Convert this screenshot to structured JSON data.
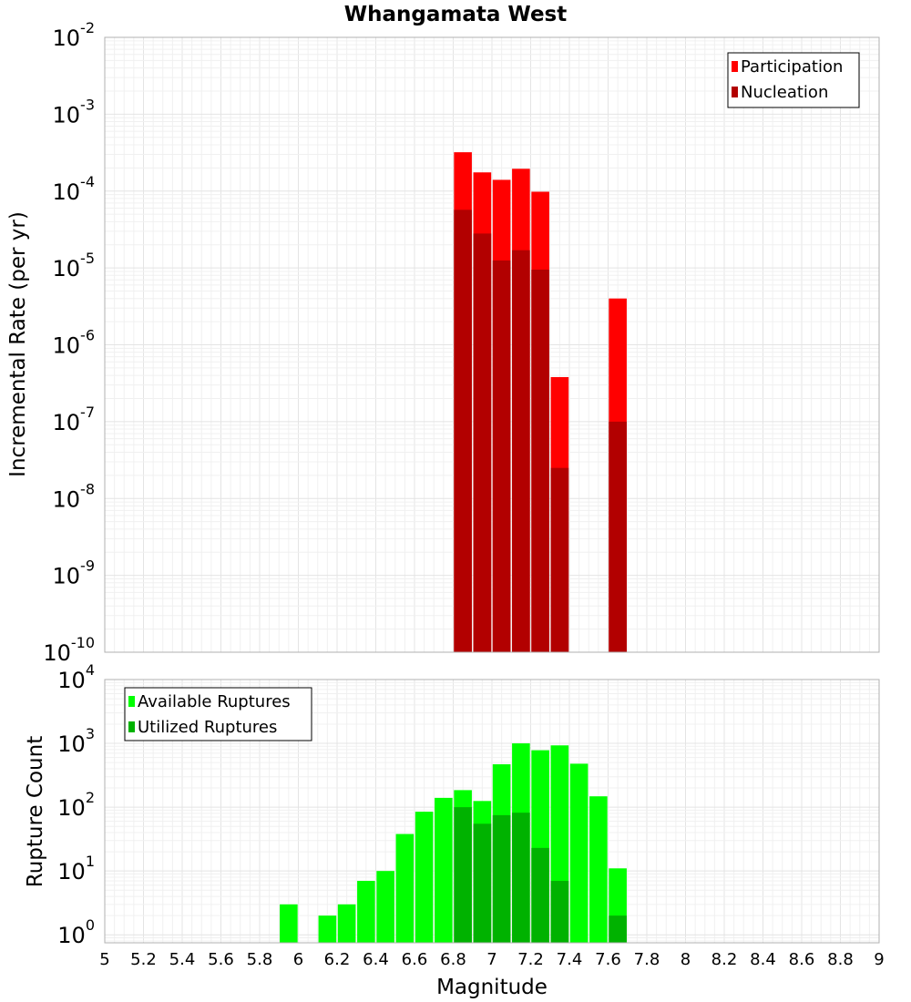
{
  "chart_data": [
    {
      "type": "bar",
      "title": "Whangamata West",
      "xlabel": "",
      "ylabel": "Incremental Rate (per yr)",
      "yscale": "log",
      "ylim": [
        1e-10,
        0.01
      ],
      "xlim": [
        5,
        9
      ],
      "grid": true,
      "legend_position": "top-right",
      "y_ticks": [
        {
          "base": "10",
          "exp": "-10"
        },
        {
          "base": "10",
          "exp": "-9"
        },
        {
          "base": "10",
          "exp": "-8"
        },
        {
          "base": "10",
          "exp": "-7"
        },
        {
          "base": "10",
          "exp": "-6"
        },
        {
          "base": "10",
          "exp": "-5"
        },
        {
          "base": "10",
          "exp": "-4"
        },
        {
          "base": "10",
          "exp": "-3"
        },
        {
          "base": "10",
          "exp": "-2"
        }
      ],
      "series": [
        {
          "name": "Participation",
          "color": "#ff0000",
          "x": [
            6.85,
            6.95,
            7.05,
            7.15,
            7.25,
            7.35,
            7.65
          ],
          "values": [
            0.00032,
            0.000175,
            0.00014,
            0.000195,
            9.8e-05,
            3.8e-07,
            4e-06
          ]
        },
        {
          "name": "Nucleation",
          "color": "#b20000",
          "x": [
            6.85,
            6.95,
            7.05,
            7.15,
            7.25,
            7.35,
            7.65
          ],
          "values": [
            5.7e-05,
            2.8e-05,
            1.25e-05,
            1.7e-05,
            9.5e-06,
            2.5e-08,
            1e-07
          ]
        }
      ]
    },
    {
      "type": "bar",
      "title": "",
      "xlabel": "Magnitude",
      "ylabel": "Rupture Count",
      "yscale": "log",
      "ylim": [
        0.75,
        10000
      ],
      "xlim": [
        5,
        9
      ],
      "grid": true,
      "legend_position": "top-left",
      "x_ticks": [
        "5",
        "5.2",
        "5.4",
        "5.6",
        "5.8",
        "6",
        "6.2",
        "6.4",
        "6.6",
        "6.8",
        "7",
        "7.2",
        "7.4",
        "7.6",
        "7.8",
        "8",
        "8.2",
        "8.4",
        "8.6",
        "8.8",
        "9"
      ],
      "y_ticks": [
        {
          "base": "10",
          "exp": "0"
        },
        {
          "base": "10",
          "exp": "1"
        },
        {
          "base": "10",
          "exp": "2"
        },
        {
          "base": "10",
          "exp": "3"
        },
        {
          "base": "10",
          "exp": "4"
        }
      ],
      "series": [
        {
          "name": "Available Ruptures",
          "color": "#00ff00",
          "x": [
            5.95,
            6.15,
            6.25,
            6.35,
            6.45,
            6.55,
            6.65,
            6.75,
            6.85,
            6.95,
            7.05,
            7.15,
            7.25,
            7.35,
            7.45,
            7.55,
            7.65
          ],
          "values": [
            3,
            2,
            3,
            7,
            10,
            38,
            85,
            140,
            185,
            125,
            470,
            1000,
            780,
            930,
            480,
            148,
            11
          ]
        },
        {
          "name": "Utilized Ruptures",
          "color": "#00b200",
          "x": [
            6.85,
            6.95,
            7.05,
            7.15,
            7.25,
            7.35,
            7.65
          ],
          "values": [
            100,
            55,
            75,
            82,
            23,
            7,
            2
          ]
        }
      ]
    }
  ]
}
